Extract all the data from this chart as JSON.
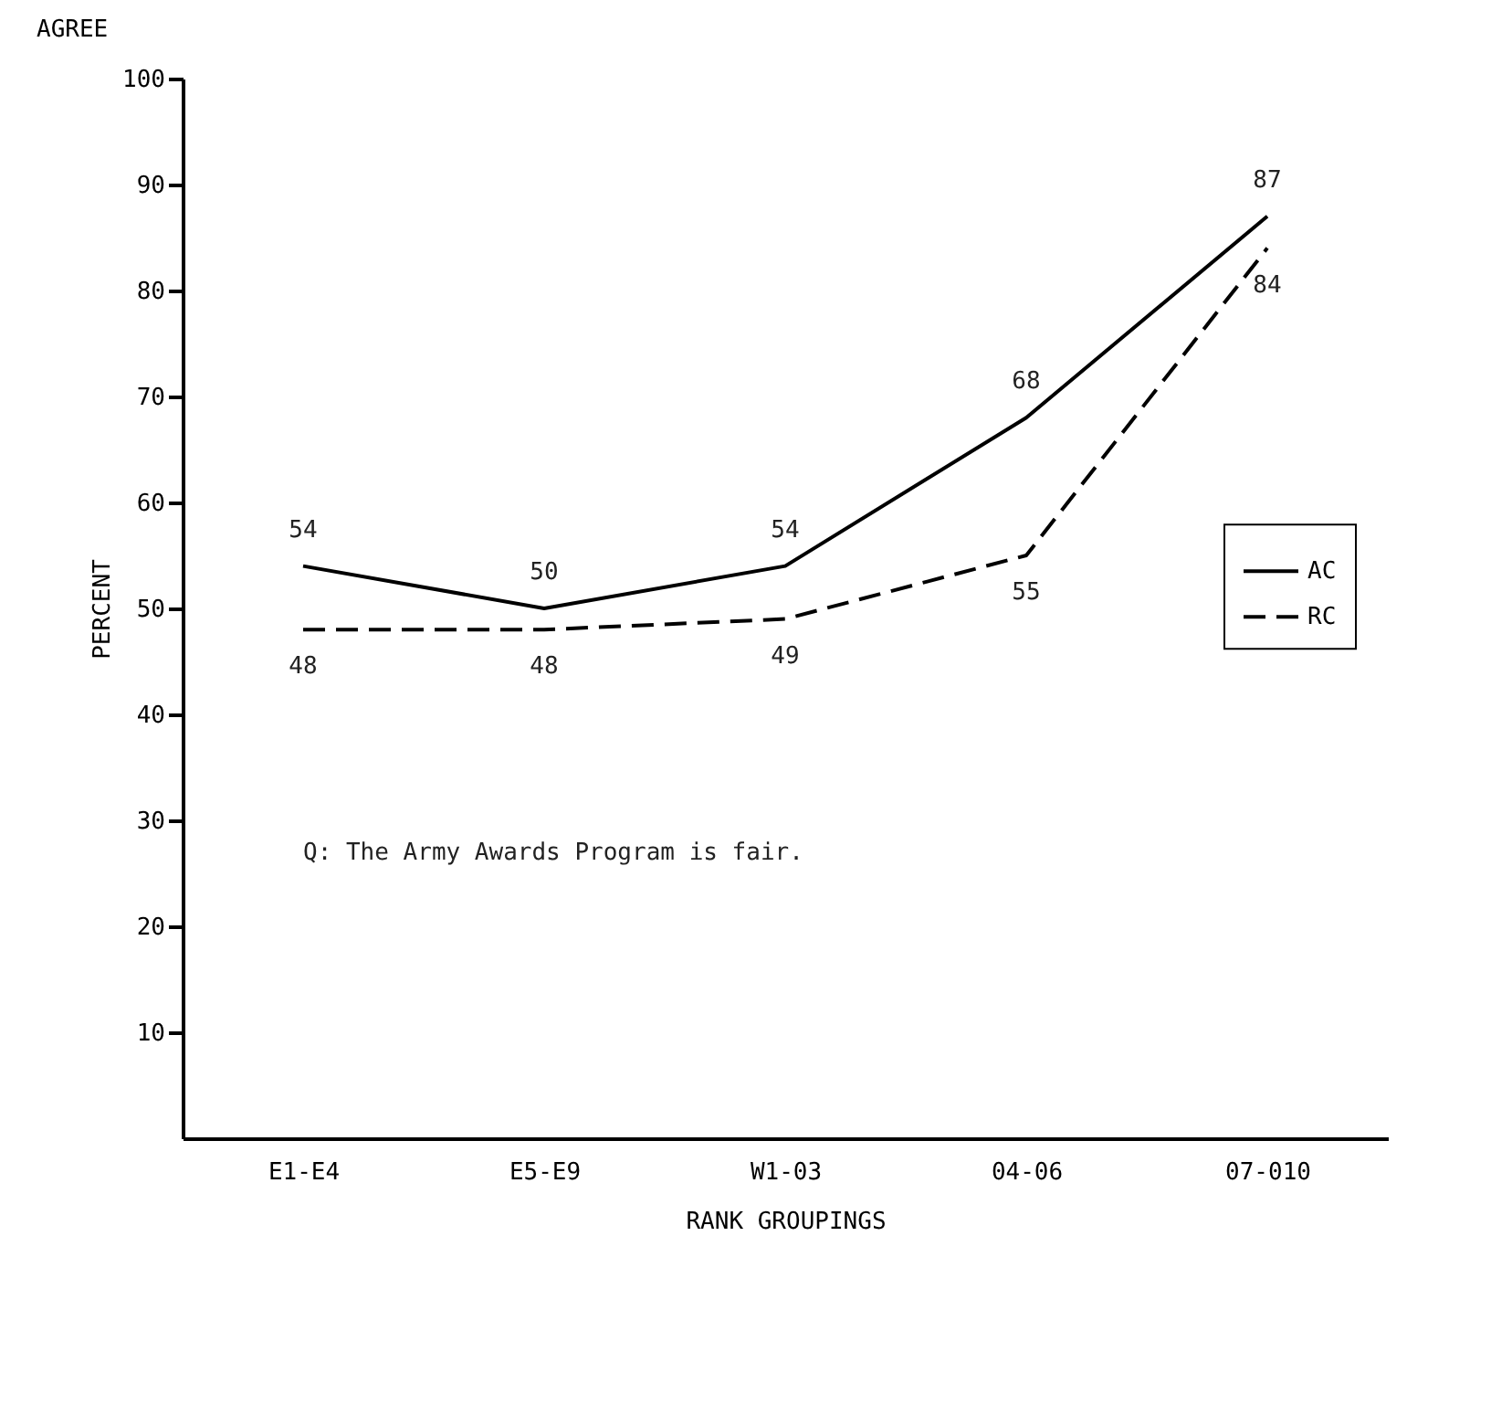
{
  "chart_data": {
    "type": "line",
    "title": "AGREE",
    "xlabel": "RANK GROUPINGS",
    "ylabel": "PERCENT",
    "categories": [
      "E1-E4",
      "E5-E9",
      "W1-03",
      "04-06",
      "07-010"
    ],
    "series": [
      {
        "name": "AC",
        "color": "#000000",
        "line_style": "solid",
        "values": [
          54,
          50,
          54,
          68,
          87
        ]
      },
      {
        "name": "RC",
        "color": "#000000",
        "line_style": "dashed",
        "values": [
          48,
          48,
          49,
          55,
          84
        ]
      }
    ],
    "ylim": [
      0,
      100
    ],
    "yticks": [
      10,
      20,
      30,
      40,
      50,
      60,
      70,
      80,
      90,
      100
    ],
    "data_labels": true,
    "legend": "right",
    "grid": false,
    "marker": "none",
    "annotations": [
      "Q:  The Army Awards Program is fair."
    ]
  }
}
